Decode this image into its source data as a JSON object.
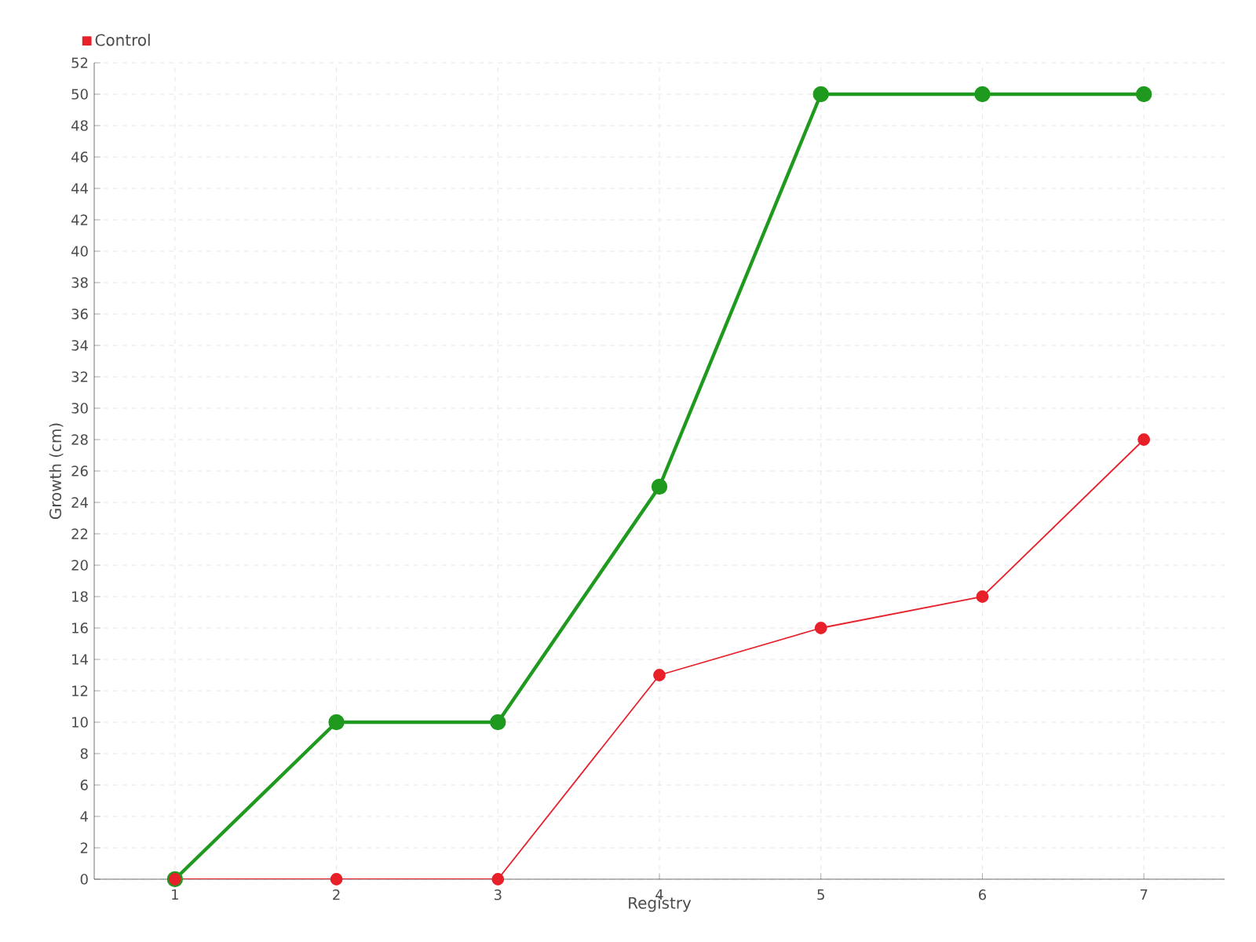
{
  "chart_data": {
    "type": "line",
    "xlabel": "Registry",
    "ylabel": "Growth (cm)",
    "categories": [
      "1",
      "2",
      "3",
      "4",
      "5",
      "6",
      "7"
    ],
    "series": [
      {
        "color": "#1f9a1f",
        "values": [
          0,
          10,
          10,
          25,
          50,
          50,
          50
        ]
      },
      {
        "name": "Control",
        "color": "#e8202a",
        "values": [
          0,
          0,
          0,
          13,
          16,
          18,
          28
        ]
      }
    ],
    "ylim": [
      0,
      52
    ],
    "yticks": [
      0,
      2,
      4,
      6,
      8,
      10,
      12,
      14,
      16,
      18,
      20,
      22,
      24,
      26,
      28,
      30,
      32,
      34,
      36,
      38,
      40,
      42,
      44,
      46,
      48,
      50,
      52
    ],
    "grid": true,
    "legend": "top left",
    "marker": "circle",
    "line_style": "solid"
  }
}
